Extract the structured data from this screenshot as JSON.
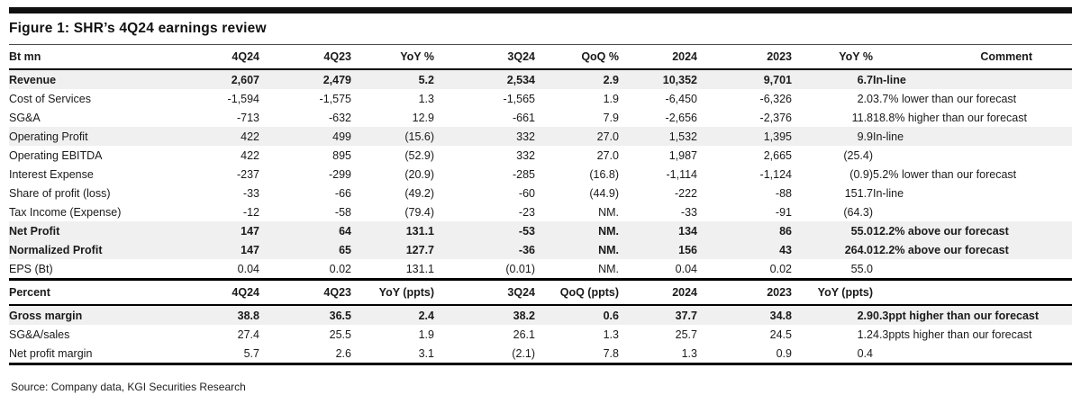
{
  "page": {
    "title": "Figure 1: SHR’s 4Q24 earnings review",
    "source": "Source: Company data, KGI Securities Research"
  },
  "colors": {
    "row_shade": "#f0f0f0",
    "rule": "#000000",
    "top_bar": "#101010"
  },
  "table": {
    "sections": [
      {
        "name": "earnings",
        "headers": [
          "Bt mn",
          "4Q24",
          "4Q23",
          "YoY %",
          "3Q24",
          "QoQ %",
          "2024",
          "2023",
          "YoY %",
          "Comment"
        ],
        "rows": [
          {
            "label": "Revenue",
            "values": [
              "2,607",
              "2,479",
              "5.2",
              "2,534",
              "2.9",
              "10,352",
              "9,701",
              "6.7"
            ],
            "comment": "In-line",
            "bold": true,
            "shaded": true
          },
          {
            "label": "Cost of Services",
            "values": [
              "-1,594",
              "-1,575",
              "1.3",
              "-1,565",
              "1.9",
              "-6,450",
              "-6,326",
              "2.0"
            ],
            "comment": "3.7% lower than our forecast",
            "bold": false,
            "shaded": false
          },
          {
            "label": "SG&A",
            "values": [
              "-713",
              "-632",
              "12.9",
              "-661",
              "7.9",
              "-2,656",
              "-2,376",
              "11.8"
            ],
            "comment": "18.8% higher than our forecast",
            "bold": false,
            "shaded": false
          },
          {
            "label": "Operating Profit",
            "values": [
              "422",
              "499",
              "(15.6)",
              "332",
              "27.0",
              "1,532",
              "1,395",
              "9.9"
            ],
            "comment": "In-line",
            "bold": false,
            "shaded": true
          },
          {
            "label": "Operating EBITDA",
            "values": [
              "422",
              "895",
              "(52.9)",
              "332",
              "27.0",
              "1,987",
              "2,665",
              "(25.4)"
            ],
            "comment": "",
            "bold": false,
            "shaded": false
          },
          {
            "label": "Interest Expense",
            "values": [
              "-237",
              "-299",
              "(20.9)",
              "-285",
              "(16.8)",
              "-1,114",
              "-1,124",
              "(0.9)"
            ],
            "comment": "5.2% lower than our forecast",
            "bold": false,
            "shaded": false
          },
          {
            "label": "Share of profit (loss)",
            "values": [
              "-33",
              "-66",
              "(49.2)",
              "-60",
              "(44.9)",
              "-222",
              "-88",
              "151.7"
            ],
            "comment": "In-line",
            "bold": false,
            "shaded": false
          },
          {
            "label": "Tax Income (Expense)",
            "values": [
              "-12",
              "-58",
              "(79.4)",
              "-23",
              "NM.",
              "-33",
              "-91",
              "(64.3)"
            ],
            "comment": "",
            "bold": false,
            "shaded": false
          },
          {
            "label": "Net Profit",
            "values": [
              "147",
              "64",
              "131.1",
              "-53",
              "NM.",
              "134",
              "86",
              "55.0"
            ],
            "comment": "12.2% above our forecast",
            "bold": true,
            "shaded": true
          },
          {
            "label": "Normalized Profit",
            "values": [
              "147",
              "65",
              "127.7",
              "-36",
              "NM.",
              "156",
              "43",
              "264.0"
            ],
            "comment": "12.2% above our forecast",
            "bold": true,
            "shaded": true
          },
          {
            "label": "EPS (Bt)",
            "values": [
              "0.04",
              "0.02",
              "131.1",
              "(0.01)",
              "NM.",
              "0.04",
              "0.02",
              "55.0"
            ],
            "comment": "",
            "bold": false,
            "shaded": false
          }
        ]
      },
      {
        "name": "percent",
        "headers": [
          "Percent",
          "4Q24",
          "4Q23",
          "YoY (ppts)",
          "3Q24",
          "QoQ (ppts)",
          "2024",
          "2023",
          "YoY (ppts)",
          ""
        ],
        "rows": [
          {
            "label": "Gross margin",
            "values": [
              "38.8",
              "36.5",
              "2.4",
              "38.2",
              "0.6",
              "37.7",
              "34.8",
              "2.9"
            ],
            "comment": "0.3ppt higher than our forecast",
            "bold": true,
            "shaded": true
          },
          {
            "label": "SG&A/sales",
            "values": [
              "27.4",
              "25.5",
              "1.9",
              "26.1",
              "1.3",
              "25.7",
              "24.5",
              "1.2"
            ],
            "comment": "4.3ppts higher than our forecast",
            "bold": false,
            "shaded": false
          },
          {
            "label": "Net profit margin",
            "values": [
              "5.7",
              "2.6",
              "3.1",
              "(2.1)",
              "7.8",
              "1.3",
              "0.9",
              "0.4"
            ],
            "comment": "",
            "bold": false,
            "shaded": false
          }
        ]
      }
    ]
  }
}
